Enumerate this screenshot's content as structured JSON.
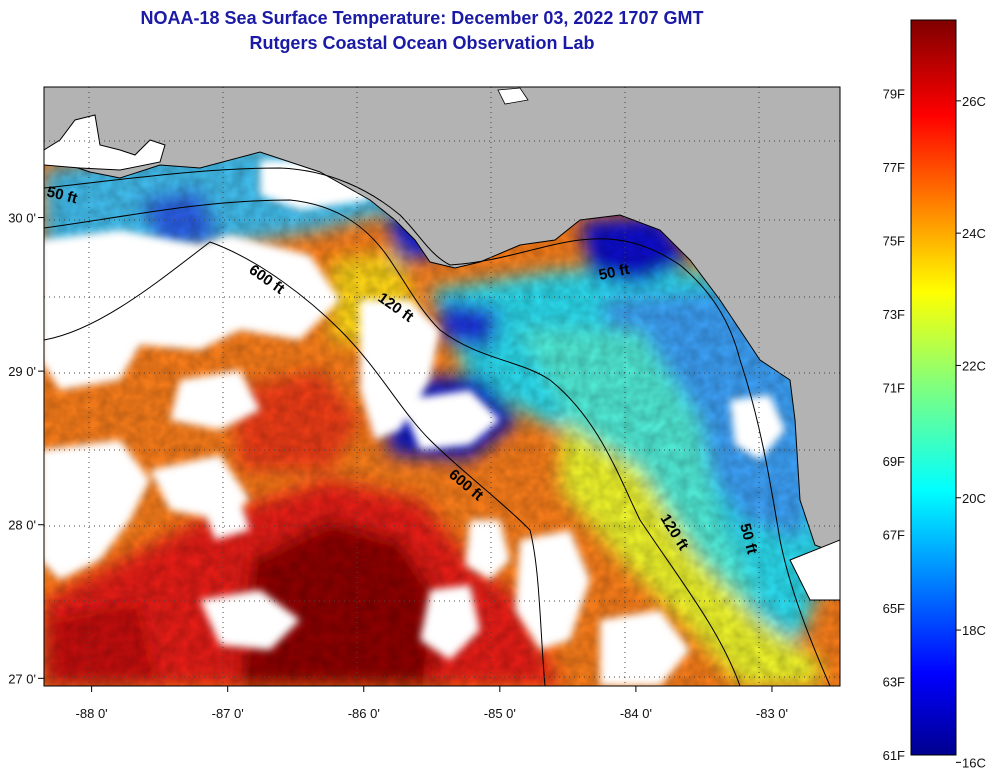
{
  "header": {
    "title": "NOAA-18 Sea Surface Temperature:  December 03, 2022 1707 GMT",
    "subtitle": "Rutgers Coastal Ocean Observation Lab"
  },
  "map": {
    "lon_range": [
      -88.35,
      -82.5
    ],
    "lat_range": [
      26.95,
      30.85
    ],
    "lon_ticks": [
      {
        "value": -88,
        "label": "-88 0'"
      },
      {
        "value": -87,
        "label": "-87 0'"
      },
      {
        "value": -86,
        "label": "-86 0'"
      },
      {
        "value": -85,
        "label": "-85 0'"
      },
      {
        "value": -84,
        "label": "-84 0'"
      },
      {
        "value": -83,
        "label": "-83 0'"
      }
    ],
    "lat_ticks": [
      {
        "value": 30,
        "label": "30 0'"
      },
      {
        "value": 29,
        "label": "29 0'"
      },
      {
        "value": 28,
        "label": "28 0'"
      },
      {
        "value": 27,
        "label": "27 0'"
      }
    ],
    "contour_labels": {
      "c50_west": "50 ft",
      "c600_north": "600 ft",
      "c120_north": "120 ft",
      "c50_east": "50 ft",
      "c600_south": "600 ft",
      "c120_south": "120 ft",
      "c50_south": "50 ft"
    },
    "colors": {
      "land": "#b3b3b3",
      "cloud": "#ffffff",
      "grid": "#444444"
    }
  },
  "colorbar": {
    "fahrenheit": [
      "79F",
      "77F",
      "75F",
      "73F",
      "71F",
      "69F",
      "67F",
      "65F",
      "63F",
      "61F"
    ],
    "celsius": [
      "26C",
      "24C",
      "22C",
      "20C",
      "18C",
      "16C"
    ],
    "fahrenheit_values": [
      79,
      77,
      75,
      73,
      71,
      69,
      67,
      65,
      63,
      61
    ],
    "celsius_values": [
      26,
      24,
      22,
      20,
      18,
      16
    ],
    "range_f": [
      61,
      81
    ],
    "colormap": "jet"
  }
}
